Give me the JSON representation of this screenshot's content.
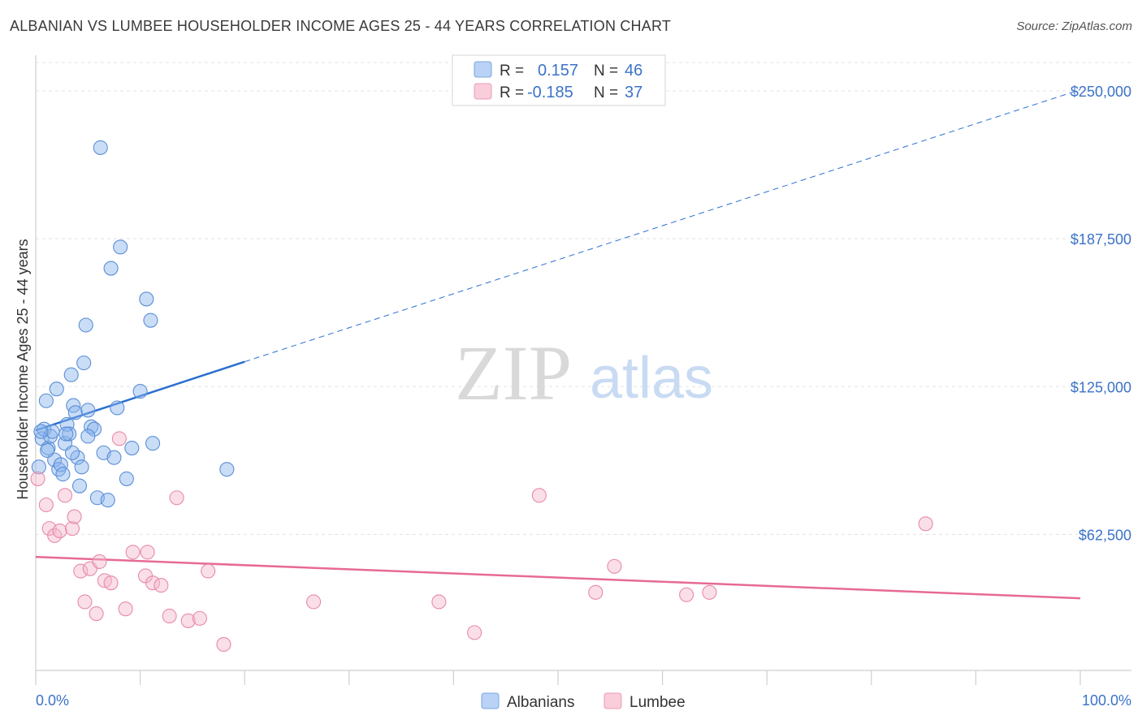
{
  "title": "ALBANIAN VS LUMBEE HOUSEHOLDER INCOME AGES 25 - 44 YEARS CORRELATION CHART",
  "source": "Source: ZipAtlas.com",
  "watermark": {
    "zip": "ZIP",
    "atlas": "atlas"
  },
  "chart_data": {
    "type": "scatter",
    "title": "ALBANIAN VS LUMBEE HOUSEHOLDER INCOME AGES 25 - 44 YEARS CORRELATION CHART",
    "xlabel": "",
    "ylabel": "Householder Income Ages 25 - 44 years",
    "xlim": [
      0,
      100
    ],
    "ylim": [
      5000,
      262000
    ],
    "x_tick_labels": {
      "left": "0.0%",
      "right": "100.0%"
    },
    "y_ticks": [
      {
        "value": 62500,
        "label": "$62,500"
      },
      {
        "value": 125000,
        "label": "$125,000"
      },
      {
        "value": 187500,
        "label": "$187,500"
      },
      {
        "value": 250000,
        "label": "$250,000"
      }
    ],
    "stats_legend": [
      {
        "r_label": "R =",
        "r_value": "0.157",
        "n_label": "N =",
        "n_value": "46"
      },
      {
        "r_label": "R =",
        "r_value": "-0.185",
        "n_label": "N =",
        "n_value": "37"
      }
    ],
    "series": [
      {
        "name": "Albanians",
        "color": "#8ab4ee",
        "stroke": "#5b8fd6",
        "line_color": "#2b6fd0",
        "trend": {
          "x0": 0,
          "y0": 106500,
          "x1": 20,
          "y1": 135500,
          "dash_to_x": 100,
          "dash_to_y": 250500
        },
        "points": [
          [
            0.3,
            91000
          ],
          [
            0.6,
            103000
          ],
          [
            0.8,
            107000
          ],
          [
            1.0,
            119000
          ],
          [
            1.2,
            99000
          ],
          [
            1.4,
            104000
          ],
          [
            1.6,
            106000
          ],
          [
            1.8,
            94000
          ],
          [
            2.0,
            124000
          ],
          [
            2.2,
            90000
          ],
          [
            2.4,
            92000
          ],
          [
            2.6,
            88000
          ],
          [
            2.8,
            101000
          ],
          [
            3.0,
            109000
          ],
          [
            3.2,
            105000
          ],
          [
            3.4,
            130000
          ],
          [
            3.6,
            117000
          ],
          [
            3.8,
            114000
          ],
          [
            4.0,
            95000
          ],
          [
            4.2,
            83000
          ],
          [
            4.4,
            91000
          ],
          [
            4.6,
            135000
          ],
          [
            4.8,
            151000
          ],
          [
            5.0,
            115000
          ],
          [
            5.3,
            108000
          ],
          [
            5.6,
            107000
          ],
          [
            5.9,
            78000
          ],
          [
            6.2,
            226000
          ],
          [
            6.5,
            97000
          ],
          [
            6.9,
            77000
          ],
          [
            7.2,
            175000
          ],
          [
            7.5,
            95000
          ],
          [
            7.8,
            116000
          ],
          [
            8.1,
            184000
          ],
          [
            8.7,
            86000
          ],
          [
            9.2,
            99000
          ],
          [
            10.0,
            123000
          ],
          [
            10.6,
            162000
          ],
          [
            11.0,
            153000
          ],
          [
            11.2,
            101000
          ],
          [
            18.3,
            90000
          ],
          [
            2.9,
            105000
          ],
          [
            1.1,
            98000
          ],
          [
            0.5,
            106000
          ],
          [
            5.0,
            104000
          ],
          [
            3.5,
            97000
          ]
        ]
      },
      {
        "name": "Lumbee",
        "color": "#f5b8cc",
        "stroke": "#e88aa8",
        "line_color": "#e76a93",
        "trend": {
          "x0": 0,
          "y0": 53000,
          "x1": 100,
          "y1": 35500
        },
        "points": [
          [
            0.2,
            86000
          ],
          [
            1.0,
            75000
          ],
          [
            1.3,
            65000
          ],
          [
            1.8,
            62000
          ],
          [
            2.3,
            64000
          ],
          [
            2.8,
            79000
          ],
          [
            3.5,
            65000
          ],
          [
            3.7,
            70000
          ],
          [
            4.3,
            47000
          ],
          [
            4.7,
            34000
          ],
          [
            5.2,
            48000
          ],
          [
            5.8,
            29000
          ],
          [
            6.1,
            51000
          ],
          [
            6.6,
            43000
          ],
          [
            7.2,
            42000
          ],
          [
            8.6,
            31000
          ],
          [
            8.0,
            103000
          ],
          [
            9.3,
            55000
          ],
          [
            10.5,
            45000
          ],
          [
            10.7,
            55000
          ],
          [
            11.2,
            42000
          ],
          [
            12.0,
            41000
          ],
          [
            12.8,
            28000
          ],
          [
            13.5,
            78000
          ],
          [
            14.6,
            26000
          ],
          [
            15.7,
            27000
          ],
          [
            16.5,
            47000
          ],
          [
            18.0,
            16000
          ],
          [
            26.6,
            34000
          ],
          [
            38.6,
            34000
          ],
          [
            42.0,
            21000
          ],
          [
            48.2,
            79000
          ],
          [
            53.6,
            38000
          ],
          [
            55.4,
            49000
          ],
          [
            62.3,
            37000
          ],
          [
            64.5,
            38000
          ],
          [
            85.2,
            67000
          ]
        ]
      }
    ]
  }
}
